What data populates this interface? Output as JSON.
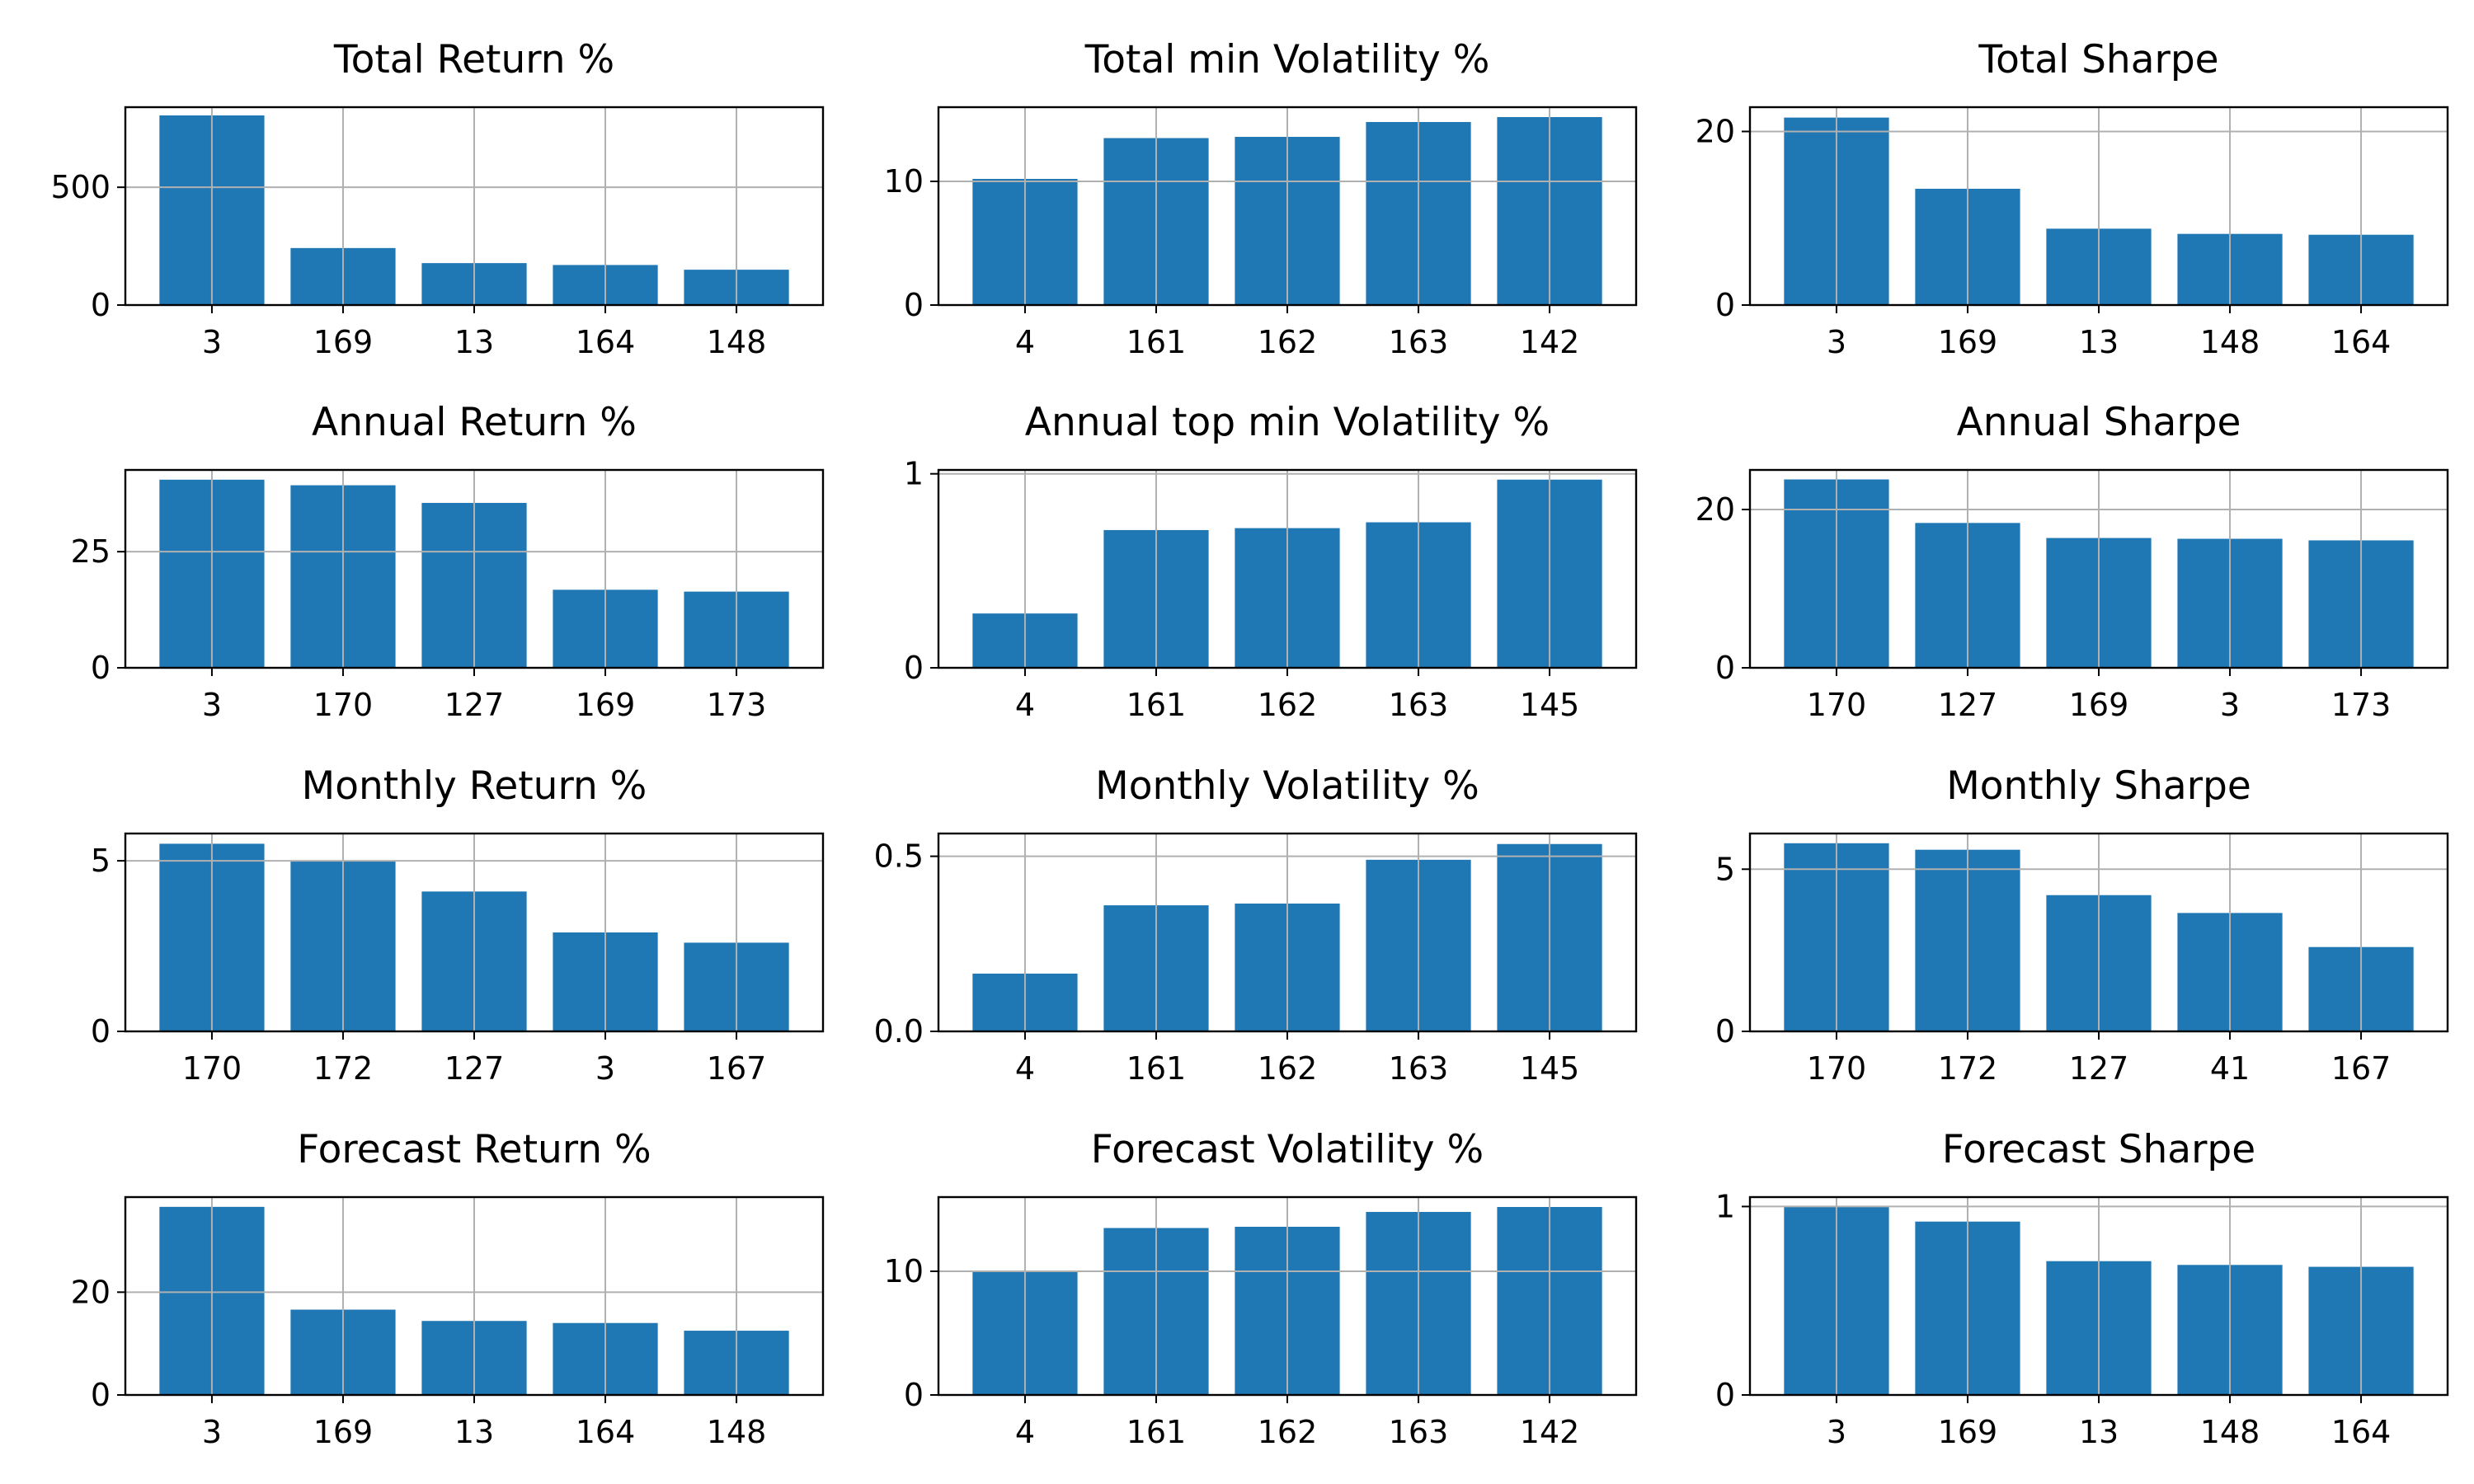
{
  "figure": {
    "bar_color": "#1f77b4",
    "grid": true,
    "background": "#ffffff"
  },
  "chart_data": [
    {
      "type": "bar",
      "title": "Total Return %",
      "categories": [
        "3",
        "169",
        "13",
        "164",
        "148"
      ],
      "values": [
        805,
        242,
        178,
        170,
        150
      ],
      "ylim": [
        0,
        840
      ],
      "yticks": [
        0,
        500
      ],
      "ytick_labels": [
        "0",
        "500"
      ]
    },
    {
      "type": "bar",
      "title": "Total min Volatility %",
      "categories": [
        "4",
        "161",
        "162",
        "163",
        "142"
      ],
      "values": [
        10.2,
        13.5,
        13.6,
        14.8,
        15.2
      ],
      "ylim": [
        0,
        16
      ],
      "yticks": [
        0,
        10
      ],
      "ytick_labels": [
        "0",
        "10"
      ]
    },
    {
      "type": "bar",
      "title": "Total Sharpe",
      "categories": [
        "3",
        "169",
        "13",
        "148",
        "164"
      ],
      "values": [
        21.6,
        13.4,
        8.8,
        8.2,
        8.1
      ],
      "ylim": [
        0,
        22.8
      ],
      "yticks": [
        0,
        20
      ],
      "ytick_labels": [
        "0",
        "20"
      ]
    },
    {
      "type": "bar",
      "title": "Annual Return %",
      "categories": [
        "3",
        "170",
        "127",
        "169",
        "173"
      ],
      "values": [
        40.5,
        39.3,
        35.5,
        16.8,
        16.4
      ],
      "ylim": [
        0,
        42.6
      ],
      "yticks": [
        0,
        25
      ],
      "ytick_labels": [
        "0",
        "25"
      ]
    },
    {
      "type": "bar",
      "title": "Annual top min Volatility %",
      "categories": [
        "4",
        "161",
        "162",
        "163",
        "145"
      ],
      "values": [
        0.28,
        0.71,
        0.72,
        0.75,
        0.97
      ],
      "ylim": [
        0,
        1.02
      ],
      "yticks": [
        0,
        1
      ],
      "ytick_labels": [
        "0",
        "1"
      ]
    },
    {
      "type": "bar",
      "title": "Annual Sharpe",
      "categories": [
        "170",
        "127",
        "169",
        "3",
        "173"
      ],
      "values": [
        23.8,
        18.3,
        16.4,
        16.3,
        16.1
      ],
      "ylim": [
        0,
        25
      ],
      "yticks": [
        0,
        20
      ],
      "ytick_labels": [
        "0",
        "20"
      ]
    },
    {
      "type": "bar",
      "title": "Monthly Return %",
      "categories": [
        "170",
        "172",
        "127",
        "3",
        "167"
      ],
      "values": [
        5.5,
        5.0,
        4.1,
        2.9,
        2.6
      ],
      "ylim": [
        0,
        5.8
      ],
      "yticks": [
        0,
        5
      ],
      "ytick_labels": [
        "0",
        "5"
      ]
    },
    {
      "type": "bar",
      "title": "Monthly Volatility %",
      "categories": [
        "4",
        "161",
        "162",
        "163",
        "145"
      ],
      "values": [
        0.165,
        0.36,
        0.365,
        0.49,
        0.535
      ],
      "ylim": [
        0,
        0.565
      ],
      "yticks": [
        0,
        0.5
      ],
      "ytick_labels": [
        "0.0",
        "0.5"
      ]
    },
    {
      "type": "bar",
      "title": "Monthly Sharpe",
      "categories": [
        "170",
        "172",
        "127",
        "41",
        "167"
      ],
      "values": [
        5.8,
        5.6,
        4.2,
        3.65,
        2.6
      ],
      "ylim": [
        0,
        6.1
      ],
      "yticks": [
        0,
        5
      ],
      "ytick_labels": [
        "0",
        "5"
      ]
    },
    {
      "type": "bar",
      "title": "Forecast Return %",
      "categories": [
        "3",
        "169",
        "13",
        "164",
        "148"
      ],
      "values": [
        36.6,
        16.6,
        14.4,
        14.0,
        12.5
      ],
      "ylim": [
        0,
        38.5
      ],
      "yticks": [
        0,
        20
      ],
      "ytick_labels": [
        "0",
        "20"
      ]
    },
    {
      "type": "bar",
      "title": "Forecast Volatility %",
      "categories": [
        "4",
        "161",
        "162",
        "163",
        "142"
      ],
      "values": [
        10.0,
        13.5,
        13.6,
        14.8,
        15.2
      ],
      "ylim": [
        0,
        16
      ],
      "yticks": [
        0,
        10
      ],
      "ytick_labels": [
        "0",
        "10"
      ]
    },
    {
      "type": "bar",
      "title": "Forecast Sharpe",
      "categories": [
        "3",
        "169",
        "13",
        "148",
        "164"
      ],
      "values": [
        1.0,
        0.92,
        0.71,
        0.69,
        0.68
      ],
      "ylim": [
        0,
        1.05
      ],
      "yticks": [
        0,
        1
      ],
      "ytick_labels": [
        "0",
        "1"
      ]
    }
  ]
}
